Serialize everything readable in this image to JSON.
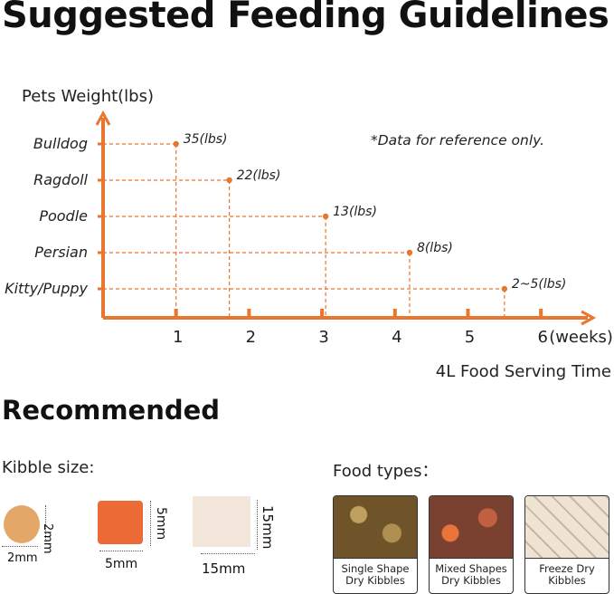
{
  "title": "Suggested Feeding Guidelines",
  "chart_data": {
    "type": "scatter",
    "ylabel": "Pets Weight(lbs)",
    "xlabel": "4L Food Serving Time",
    "x_unit": "(weeks)",
    "note": "*Data for reference only.",
    "categories": [
      "Bulldog",
      "Ragdoll",
      "Poodle",
      "Persian",
      "Kitty/Puppy"
    ],
    "x_ticks": [
      "1",
      "2",
      "3",
      "4",
      "5",
      "6"
    ],
    "xlim": [
      0,
      6.5
    ],
    "points": [
      {
        "category": "Bulldog",
        "x": 1.0,
        "label": "35(lbs)"
      },
      {
        "category": "Ragdoll",
        "x": 1.73,
        "label": "22(lbs)"
      },
      {
        "category": "Poodle",
        "x": 3.05,
        "label": "13(lbs)"
      },
      {
        "category": "Persian",
        "x": 4.2,
        "label": "8(lbs)"
      },
      {
        "category": "Kitty/Puppy",
        "x": 5.5,
        "label": "2~5(lbs)"
      }
    ],
    "grid": false,
    "color": "#e8762c"
  },
  "recommended": {
    "title": "Recommended",
    "kibble_title": "Kibble size:",
    "kibbles": [
      {
        "width": "2mm",
        "height": "2mm",
        "color": "#e0a060"
      },
      {
        "width": "5mm",
        "height": "5mm",
        "color": "#ec6a35"
      },
      {
        "width": "15mm",
        "height": "15mm",
        "color": "#f2e2d4"
      }
    ],
    "food_title": "Food types：",
    "foods": [
      {
        "line1": "Single Shape",
        "line2": "Dry Kibbles",
        "color": "#9a7a40"
      },
      {
        "line1": "Mixed Shapes",
        "line2": "Dry Kibbles",
        "color": "#a0553a"
      },
      {
        "line1": "Freeze Dry",
        "line2": "Kibbles",
        "color": "#e2d3c0"
      }
    ]
  }
}
